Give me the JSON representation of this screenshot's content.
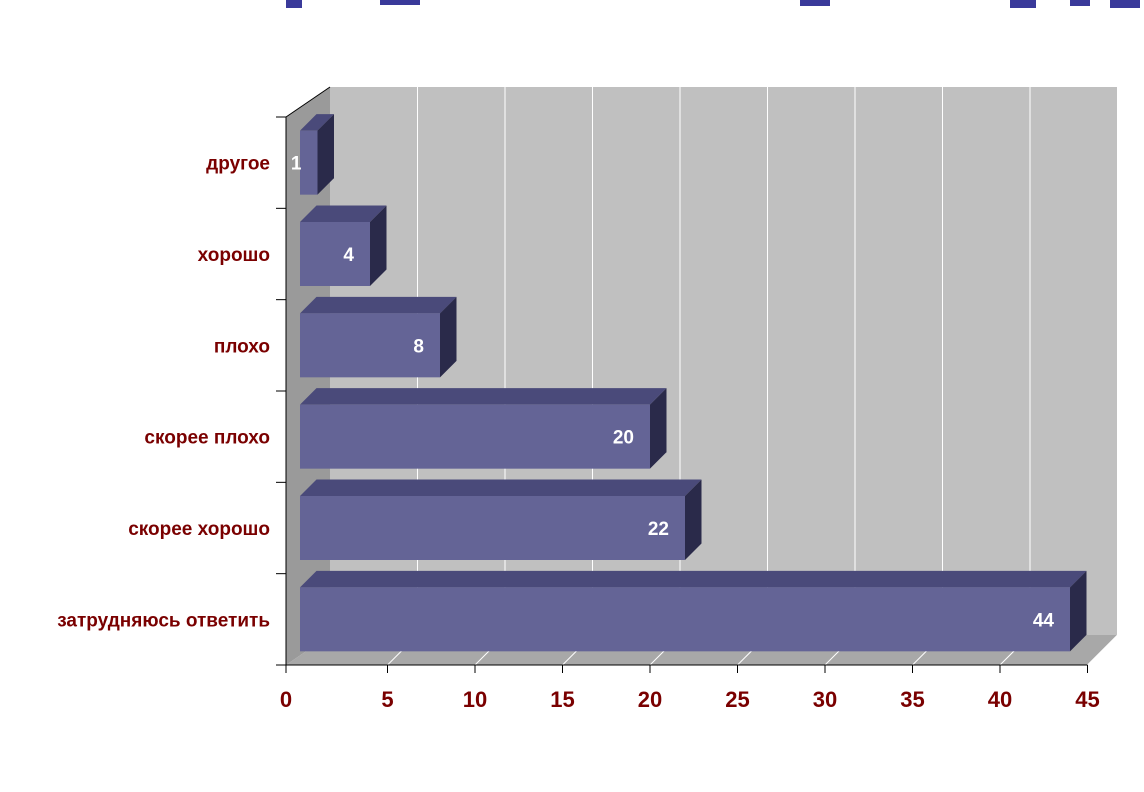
{
  "colors": {
    "bar_front": "#646496",
    "bar_top": "#4a4a7a",
    "bar_side": "#2a2a4a",
    "wall": "#c0c0c0",
    "floor": "#a8a8a8",
    "label": "#7a0000",
    "title_fragment": "#3a3a9a"
  },
  "chart_data": {
    "type": "bar",
    "orientation": "horizontal",
    "categories": [
      "затрудняюсь ответить",
      "скорее хорошо",
      "скорее плохо",
      "плохо",
      "хорошо",
      "другое"
    ],
    "values": [
      44,
      22,
      20,
      8,
      4,
      1
    ],
    "xlim": [
      0,
      45
    ],
    "xticks": [
      0,
      5,
      10,
      15,
      20,
      25,
      30,
      35,
      40,
      45
    ],
    "grid": true,
    "style": "3d",
    "title": "",
    "xlabel": "",
    "ylabel": ""
  }
}
